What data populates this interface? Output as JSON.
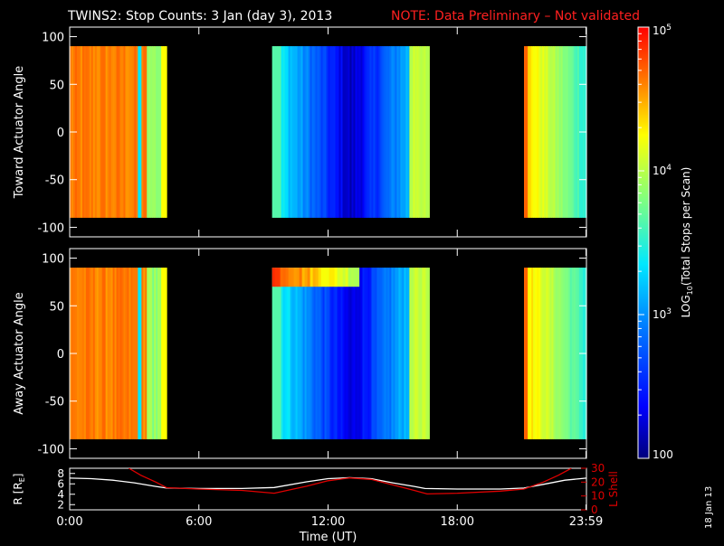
{
  "title": {
    "main": "TWINS2: Stop Counts:  3 Jan (day   3), 2013",
    "note": "NOTE: Data Preliminary – Not validated",
    "note_color": "#ff2020"
  },
  "footer_date": "18 Jan 13",
  "chart_data": [
    {
      "type": "heatmap",
      "name": "toward",
      "ylabel": "Toward Actuator Angle",
      "ylim": [
        -110,
        110
      ],
      "yticks": [
        100,
        50,
        0,
        -50,
        -100
      ],
      "data_ylim": [
        -90,
        90
      ],
      "x_unit": "hours UT",
      "xlim": [
        0,
        24
      ],
      "blocks": [
        {
          "x": [
            0.0,
            4.5
          ],
          "level": 0.87,
          "variant": "early"
        },
        {
          "x": [
            9.4,
            16.7
          ],
          "level": 0.28,
          "variant": "mid"
        },
        {
          "x": [
            21.1,
            24.0
          ],
          "level": 0.8,
          "variant": "late"
        }
      ]
    },
    {
      "type": "heatmap",
      "name": "away",
      "ylabel": "Away Actuator Angle",
      "ylim": [
        -110,
        110
      ],
      "yticks": [
        100,
        50,
        0,
        -50,
        -100
      ],
      "data_ylim": [
        -90,
        90
      ],
      "x_unit": "hours UT",
      "xlim": [
        0,
        24
      ],
      "blocks": [
        {
          "x": [
            0.0,
            4.5
          ],
          "level": 0.87,
          "variant": "early"
        },
        {
          "x": [
            9.4,
            16.7
          ],
          "level": 0.3,
          "variant": "mid",
          "hot_band": [
            70,
            90
          ]
        },
        {
          "x": [
            21.1,
            24.0
          ],
          "level": 0.8,
          "variant": "late"
        }
      ]
    },
    {
      "type": "line",
      "name": "orbit",
      "ylabel_left": "R [R",
      "ylabel_left_sub": "E",
      "ylabel_left_end": "]",
      "ylabel_right": "L Shell",
      "ylim_left": [
        1,
        9
      ],
      "ylim_right": [
        0,
        30
      ],
      "yticks_left": [
        "8",
        "6",
        "4",
        "2"
      ],
      "yticks_right": [
        "30",
        "20",
        "10",
        "0"
      ],
      "xlabel": "Time (UT)",
      "xticks": [
        "0:00",
        "6:00",
        "12:00",
        "18:00",
        "23:59"
      ],
      "xtick_values": [
        0,
        6,
        12,
        18,
        23.98
      ],
      "series": [
        {
          "axis": "left",
          "color": "#ffffff",
          "x": [
            0,
            1,
            2,
            3,
            4,
            4.5,
            6,
            8,
            9.5,
            11,
            12,
            13,
            14,
            15,
            16,
            16.5,
            18,
            20,
            21.1,
            22,
            23,
            24
          ],
          "y": [
            7.1,
            7.0,
            6.7,
            6.2,
            5.5,
            5.2,
            5.1,
            5.1,
            5.3,
            6.4,
            7.0,
            7.2,
            7.0,
            6.2,
            5.5,
            5.1,
            5.0,
            5.0,
            5.2,
            5.9,
            6.7,
            7.1
          ]
        },
        {
          "axis": "right",
          "color": "#e00000",
          "x": [
            2.75,
            3.3,
            4.0,
            4.5,
            6,
            8,
            9.5,
            11,
            12,
            13,
            14,
            15,
            16,
            16.6,
            18,
            20,
            21.1,
            22,
            22.7,
            23.3
          ],
          "y": [
            30,
            25,
            20,
            16,
            15,
            14,
            12,
            17,
            21,
            23,
            22,
            18,
            14,
            11.5,
            12,
            13.5,
            15,
            20,
            25,
            30
          ]
        }
      ]
    }
  ],
  "colorbar": {
    "label": "LOG",
    "label_sub": "10",
    "label_rest": "(Total Stops per Scan)",
    "ticks": [
      {
        "base": "10",
        "exp": "5",
        "value": 100000
      },
      {
        "base": "10",
        "exp": "4",
        "value": 10000
      },
      {
        "base": "10",
        "exp": "3",
        "value": 1000
      },
      {
        "base": "100",
        "exp": "",
        "value": 100
      }
    ],
    "range": [
      100,
      100000
    ],
    "scale": "log"
  }
}
